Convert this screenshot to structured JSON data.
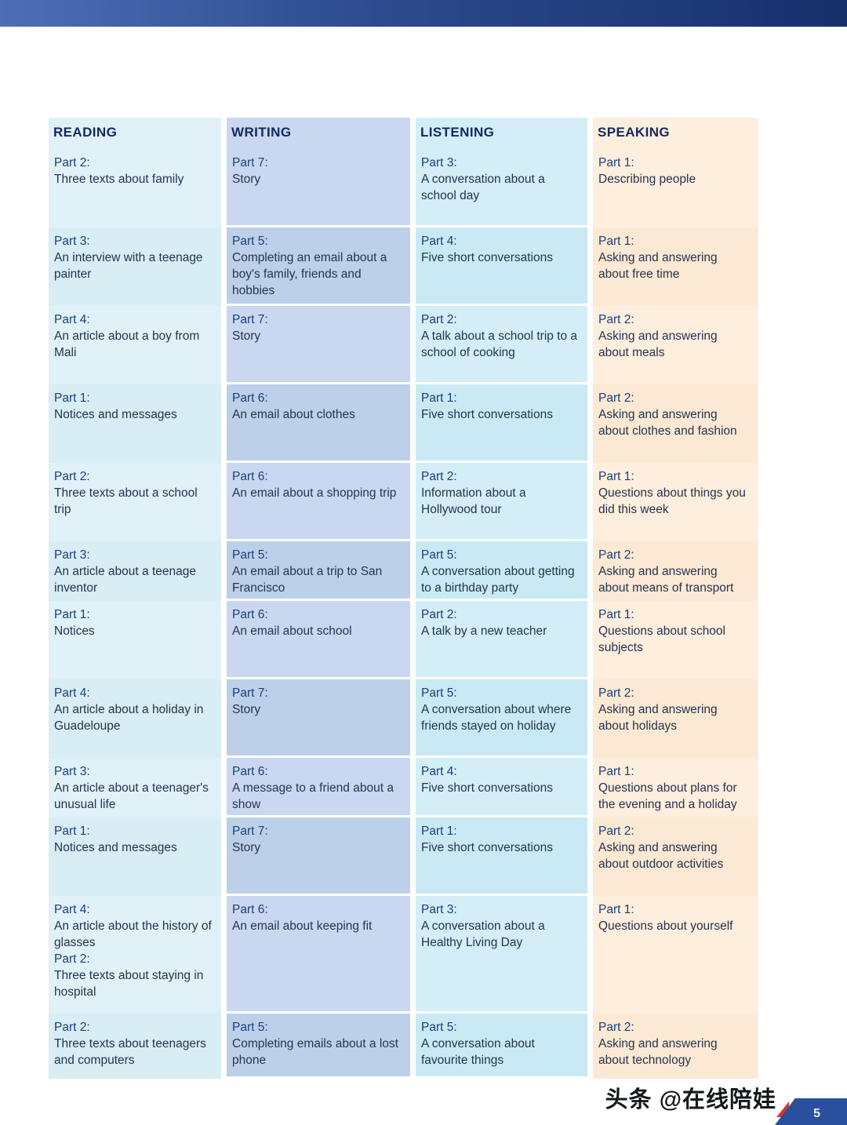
{
  "columns": [
    {
      "key": "reading",
      "label": "READING"
    },
    {
      "key": "writing",
      "label": "WRITING"
    },
    {
      "key": "listening",
      "label": "LISTENING"
    },
    {
      "key": "speaking",
      "label": "SPEAKING"
    }
  ],
  "rows": [
    {
      "reading": [
        {
          "part": "Part 2:",
          "text": "Three texts about family"
        }
      ],
      "writing": [
        {
          "part": "Part 7:",
          "text": "Story"
        }
      ],
      "listening": [
        {
          "part": "Part 3:",
          "text": "A conversation about a school day"
        }
      ],
      "speaking": [
        {
          "part": "Part 1:",
          "text": "Describing people"
        }
      ]
    },
    {
      "reading": [
        {
          "part": "Part 3:",
          "text": "An interview with a teenage painter"
        }
      ],
      "writing": [
        {
          "part": "Part 5:",
          "text": "Completing an email about a boy's family, friends and hobbies"
        }
      ],
      "listening": [
        {
          "part": "Part 4:",
          "text": "Five short conversations"
        }
      ],
      "speaking": [
        {
          "part": "Part 1:",
          "text": "Asking and answering about free time"
        }
      ]
    },
    {
      "reading": [
        {
          "part": "Part 4:",
          "text": "An article about a boy from Mali"
        }
      ],
      "writing": [
        {
          "part": "Part 7:",
          "text": "Story"
        }
      ],
      "listening": [
        {
          "part": "Part 2:",
          "text": "A talk about a school trip to a school of cooking"
        }
      ],
      "speaking": [
        {
          "part": "Part 2:",
          "text": "Asking and answering about meals"
        }
      ]
    },
    {
      "reading": [
        {
          "part": "Part 1:",
          "text": "Notices and messages"
        }
      ],
      "writing": [
        {
          "part": "Part 6:",
          "text": "An email about clothes"
        }
      ],
      "listening": [
        {
          "part": "Part 1:",
          "text": "Five short conversations"
        }
      ],
      "speaking": [
        {
          "part": "Part 2:",
          "text": "Asking and answering about clothes and fashion"
        }
      ]
    },
    {
      "reading": [
        {
          "part": "Part 2:",
          "text": "Three texts about a school trip"
        }
      ],
      "writing": [
        {
          "part": "Part 6:",
          "text": "An email about a shopping trip"
        }
      ],
      "listening": [
        {
          "part": "Part 2:",
          "text": "Information about a Hollywood tour"
        }
      ],
      "speaking": [
        {
          "part": "Part 1:",
          "text": "Questions about things you did this week"
        }
      ]
    },
    {
      "reading": [
        {
          "part": "Part 3:",
          "text": "An article about a teenage inventor"
        }
      ],
      "writing": [
        {
          "part": "Part 5:",
          "text": "An email about a trip to San Francisco"
        }
      ],
      "listening": [
        {
          "part": "Part 5:",
          "text": "A conversation about getting to a birthday party"
        }
      ],
      "speaking": [
        {
          "part": "Part 2:",
          "text": "Asking and answering about means of transport"
        }
      ]
    },
    {
      "reading": [
        {
          "part": "Part 1:",
          "text": "Notices"
        }
      ],
      "writing": [
        {
          "part": "Part 6:",
          "text": "An email about school"
        }
      ],
      "listening": [
        {
          "part": "Part 2:",
          "text": "A talk by a new teacher"
        }
      ],
      "speaking": [
        {
          "part": "Part 1:",
          "text": "Questions about school subjects"
        }
      ]
    },
    {
      "reading": [
        {
          "part": "Part 4:",
          "text": "An article about a holiday in Guadeloupe"
        }
      ],
      "writing": [
        {
          "part": "Part 7:",
          "text": "Story"
        }
      ],
      "listening": [
        {
          "part": "Part 5:",
          "text": "A conversation about where friends stayed on holiday"
        }
      ],
      "speaking": [
        {
          "part": "Part 2:",
          "text": "Asking and answering about holidays"
        }
      ]
    },
    {
      "reading": [
        {
          "part": "Part 3:",
          "text": "An article about a teenager's unusual life"
        }
      ],
      "writing": [
        {
          "part": "Part 6:",
          "text": "A message to a friend about a show"
        }
      ],
      "listening": [
        {
          "part": "Part 4:",
          "text": "Five short conversations"
        }
      ],
      "speaking": [
        {
          "part": "Part 1:",
          "text": "Questions about plans for the evening and a holiday"
        }
      ]
    },
    {
      "reading": [
        {
          "part": "Part 1:",
          "text": "Notices and messages"
        }
      ],
      "writing": [
        {
          "part": "Part 7:",
          "text": "Story"
        }
      ],
      "listening": [
        {
          "part": "Part 1:",
          "text": "Five short conversations"
        }
      ],
      "speaking": [
        {
          "part": "Part 2:",
          "text": "Asking and answering about outdoor activities"
        }
      ]
    },
    {
      "reading": [
        {
          "part": "Part 4:",
          "text": "An article about the history of glasses"
        },
        {
          "part": "Part 2:",
          "text": "Three texts about staying in hospital"
        }
      ],
      "writing": [
        {
          "part": "Part 6:",
          "text": "An email about keeping fit"
        }
      ],
      "listening": [
        {
          "part": "Part 3:",
          "text": "A conversation about a Healthy Living Day"
        }
      ],
      "speaking": [
        {
          "part": "Part 1:",
          "text": "Questions about yourself"
        }
      ]
    },
    {
      "reading": [
        {
          "part": "Part 2:",
          "text": "Three texts about teenagers and computers"
        }
      ],
      "writing": [
        {
          "part": "Part 5:",
          "text": "Completing emails about a lost phone"
        }
      ],
      "listening": [
        {
          "part": "Part 5:",
          "text": "A conversation about favourite things"
        }
      ],
      "speaking": [
        {
          "part": "Part 2:",
          "text": "Asking and answering about technology"
        }
      ]
    }
  ],
  "watermark": {
    "text": "头条 @在线陪娃"
  },
  "page_number": "5",
  "colors": {
    "reading_bg": "#e0f1f7",
    "writing_bg": "#c9d8f0",
    "listening_bg": "#d3eef6",
    "speaking_bg": "#fdeedd",
    "corner_blue": "#2a4f9e",
    "corner_red": "#d9342b"
  }
}
